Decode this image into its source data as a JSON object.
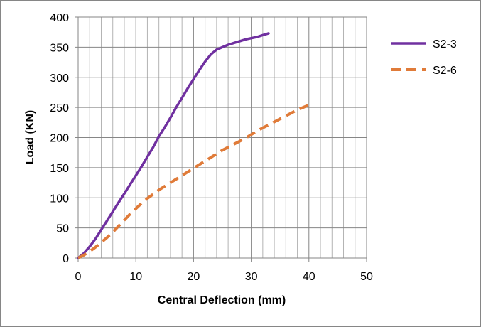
{
  "chart_data": {
    "type": "line",
    "title": "",
    "xlabel": "Central Deflection (mm)",
    "ylabel": "Load (KN)",
    "xlim": [
      0,
      50
    ],
    "ylim": [
      0,
      400
    ],
    "x_ticks": [
      0,
      10,
      20,
      30,
      40,
      50
    ],
    "y_ticks": [
      0,
      50,
      100,
      150,
      200,
      250,
      300,
      350,
      400
    ],
    "grid": true,
    "legend_position": "right",
    "series": [
      {
        "name": "S2-3",
        "color": "#7030A0",
        "style": "solid",
        "x": [
          0,
          1,
          2,
          3,
          4,
          5,
          6,
          7,
          8,
          9,
          10,
          11,
          12,
          13,
          14,
          15,
          16,
          17,
          18,
          19,
          20,
          21,
          22,
          23,
          24,
          25,
          26,
          27,
          28,
          29,
          30,
          31,
          32,
          33
        ],
        "y": [
          0,
          8,
          19,
          32,
          47,
          62,
          77,
          92,
          107,
          122,
          137,
          152,
          168,
          184,
          202,
          217,
          233,
          250,
          266,
          282,
          297,
          312,
          326,
          338,
          346,
          350,
          354,
          357,
          360,
          363,
          365,
          367,
          370,
          373
        ]
      },
      {
        "name": "S2-6",
        "color": "#E07B39",
        "style": "dashed",
        "x": [
          0,
          1,
          2,
          3,
          4,
          5,
          6,
          7,
          8,
          9,
          10,
          11,
          12,
          13,
          14,
          15,
          16,
          17,
          18,
          19,
          20,
          21,
          22,
          23,
          24,
          25,
          26,
          27,
          28,
          29,
          30,
          31,
          32,
          33,
          34,
          35,
          36,
          37,
          38,
          39,
          40
        ],
        "y": [
          0,
          5,
          11,
          18,
          26,
          34,
          43,
          53,
          63,
          73,
          82,
          91,
          99,
          106,
          113,
          119,
          125,
          131,
          137,
          143,
          149,
          155,
          161,
          167,
          173,
          179,
          184,
          189,
          194,
          199,
          205,
          211,
          216,
          221,
          226,
          231,
          236,
          241,
          246,
          250,
          254
        ]
      }
    ]
  }
}
